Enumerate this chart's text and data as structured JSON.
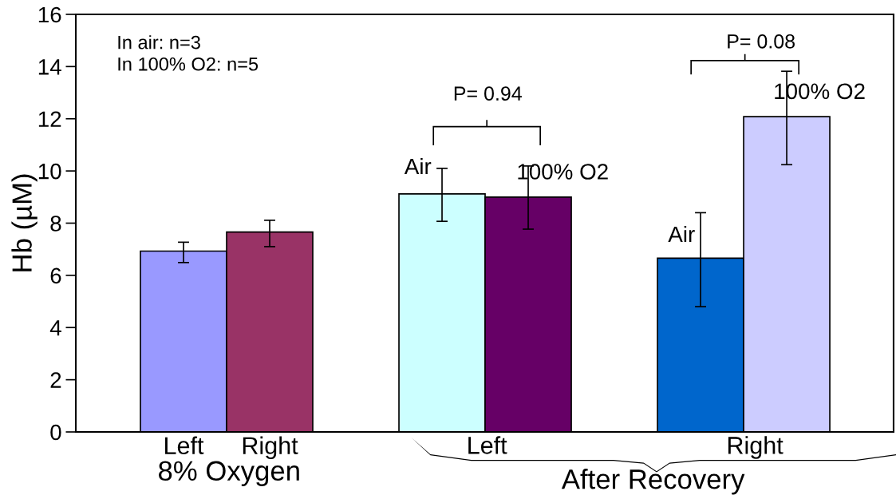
{
  "chart_data": {
    "type": "bar",
    "ylabel": "Hb (µM)",
    "categories": [
      "Left",
      "Right",
      null,
      null,
      null,
      null,
      null,
      null
    ],
    "values": [
      6.93,
      7.66,
      null,
      9.12,
      9.0,
      null,
      6.66,
      12.08
    ],
    "colors": [
      "#9999ff",
      "#993366",
      null,
      "#ccffff",
      "#660066",
      null,
      "#0066cc",
      "#ccccff"
    ],
    "errors": [
      [
        6.49,
        7.27
      ],
      [
        7.1,
        8.11
      ],
      null,
      [
        8.07,
        10.1
      ],
      [
        7.77,
        10.19
      ],
      null,
      [
        4.8,
        8.4
      ],
      [
        10.24,
        13.82
      ]
    ],
    "ylim": [
      0,
      16
    ],
    "yticks": [
      0,
      2,
      4,
      6,
      8,
      10,
      12,
      14,
      16
    ],
    "annotations": [
      "In air: n=3\nIn 100% O2: n=5",
      "P= 0.94",
      "P= 0.08",
      "Air",
      "100% O2",
      "Air",
      "100% O2",
      "Left",
      "Right",
      "8% Oxygen",
      "After Recovery"
    ]
  }
}
